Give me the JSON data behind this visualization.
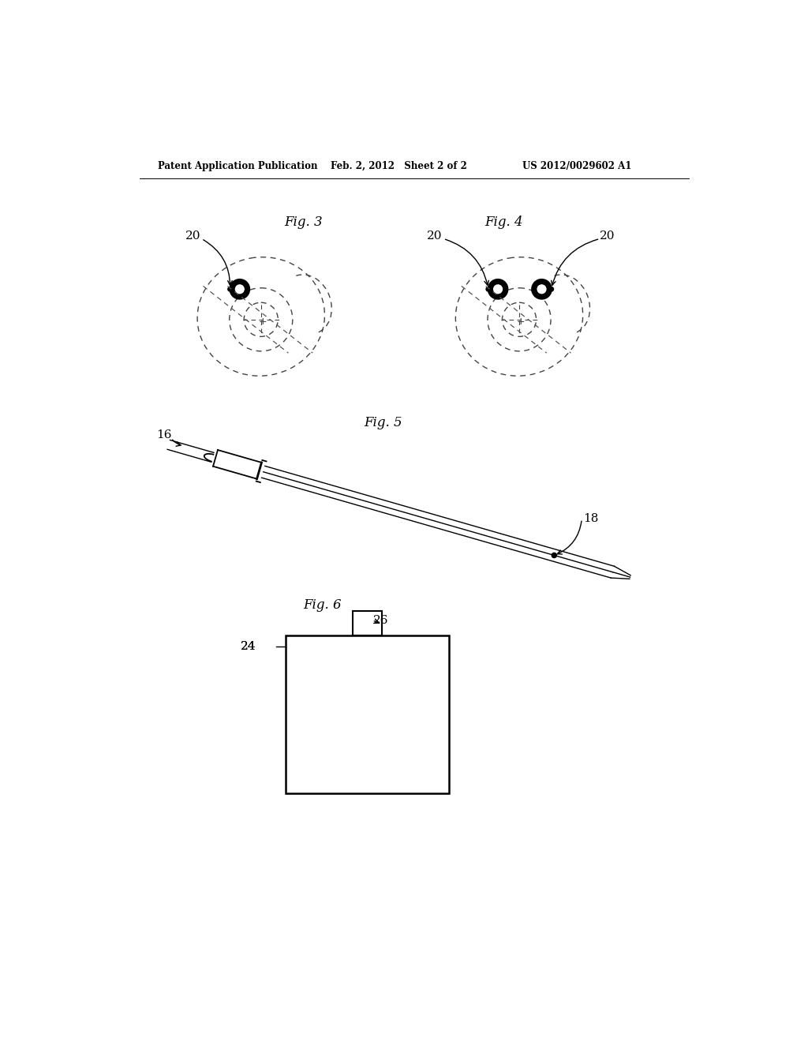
{
  "bg_color": "#ffffff",
  "header_left": "Patent Application Publication",
  "header_mid": "Feb. 2, 2012   Sheet 2 of 2",
  "header_right": "US 2012/0029602 A1",
  "fig3_label": "Fig. 3",
  "fig4_label": "Fig. 4",
  "fig5_label": "Fig. 5",
  "fig6_label": "Fig. 6",
  "ref_20_fig3": "20",
  "ref_20_fig4a": "20",
  "ref_20_fig4b": "20",
  "ref_16": "16",
  "ref_18": "18",
  "ref_24": "24",
  "ref_26": "26"
}
